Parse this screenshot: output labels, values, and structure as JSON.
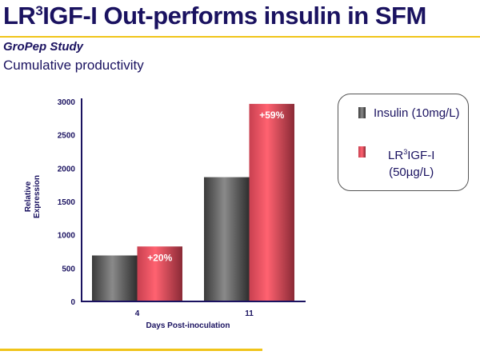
{
  "slide": {
    "title_pre": "LR",
    "title_sup": "3",
    "title_post": "IGF-I Out-performs insulin in SFM",
    "subtitle": "GroPep Study",
    "description": "Cumulative productivity"
  },
  "chart_data": {
    "type": "bar",
    "categories": [
      "4",
      "11"
    ],
    "series": [
      {
        "name": "Insulin (10mg/L)",
        "values": [
          690,
          1865
        ],
        "color": "#6e6e6e"
      },
      {
        "name": "LR3IGF-I (50µg/L)",
        "values": [
          825,
          2965
        ],
        "color": "#f05a6a"
      }
    ],
    "annotations": [
      "+20%",
      "+59%"
    ],
    "xlabel": "Days Post-inoculation",
    "ylabel": "Relative Expression",
    "ylabel_lines": [
      "Relative",
      "Expression"
    ],
    "ylim": [
      0,
      3000
    ],
    "yticks": [
      "0",
      "500",
      "1000",
      "1500",
      "2000",
      "2500",
      "3000"
    ],
    "grid": false,
    "legend_placement": "right"
  },
  "legend": {
    "insulin": "Insulin (10mg/L)",
    "lr_pre": "LR",
    "lr_sup": "3",
    "lr_post": "IGF-I",
    "lr_dose": "(50µg/L)"
  },
  "colors": {
    "title": "#1a1260",
    "accent_line": "#f0c419"
  }
}
